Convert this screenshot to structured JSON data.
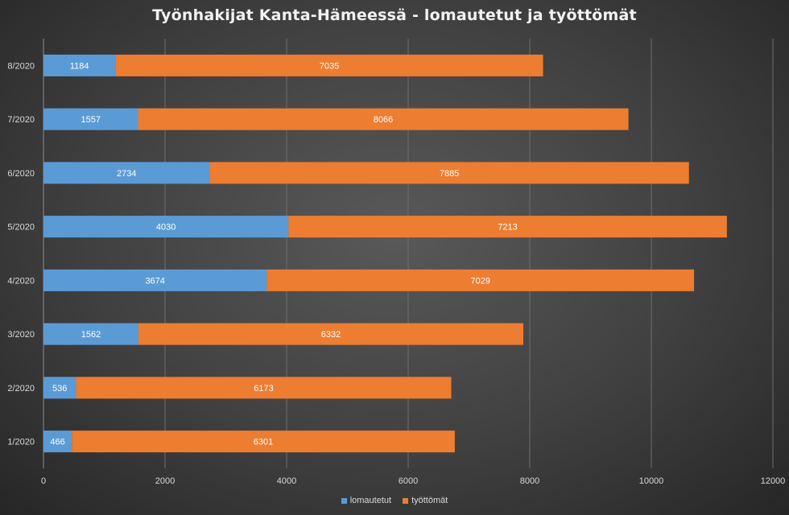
{
  "chart_data": {
    "type": "bar",
    "orientation": "horizontal",
    "stacked": true,
    "title": "Työnhakijat Kanta-Hämeessä - lomautetut ja työttömät",
    "categories": [
      "8/2020",
      "7/2020",
      "6/2020",
      "5/2020",
      "4/2020",
      "3/2020",
      "2/2020",
      "1/2020"
    ],
    "series": [
      {
        "name": "lomautetut",
        "color": "#5b9bd5",
        "values": [
          1184,
          1557,
          2734,
          4030,
          3674,
          1562,
          536,
          466
        ]
      },
      {
        "name": "työttömät",
        "color": "#ed7d31",
        "values": [
          7035,
          8066,
          7885,
          7213,
          7029,
          6332,
          6173,
          6301
        ]
      }
    ],
    "xlim": [
      0,
      12000
    ],
    "xticks": [
      "0",
      "2000",
      "4000",
      "6000",
      "8000",
      "10000",
      "12000"
    ],
    "xtick_values": [
      0,
      2000,
      4000,
      6000,
      8000,
      10000,
      12000
    ],
    "grid": true,
    "legend_position": "bottom",
    "data_labels": true
  }
}
